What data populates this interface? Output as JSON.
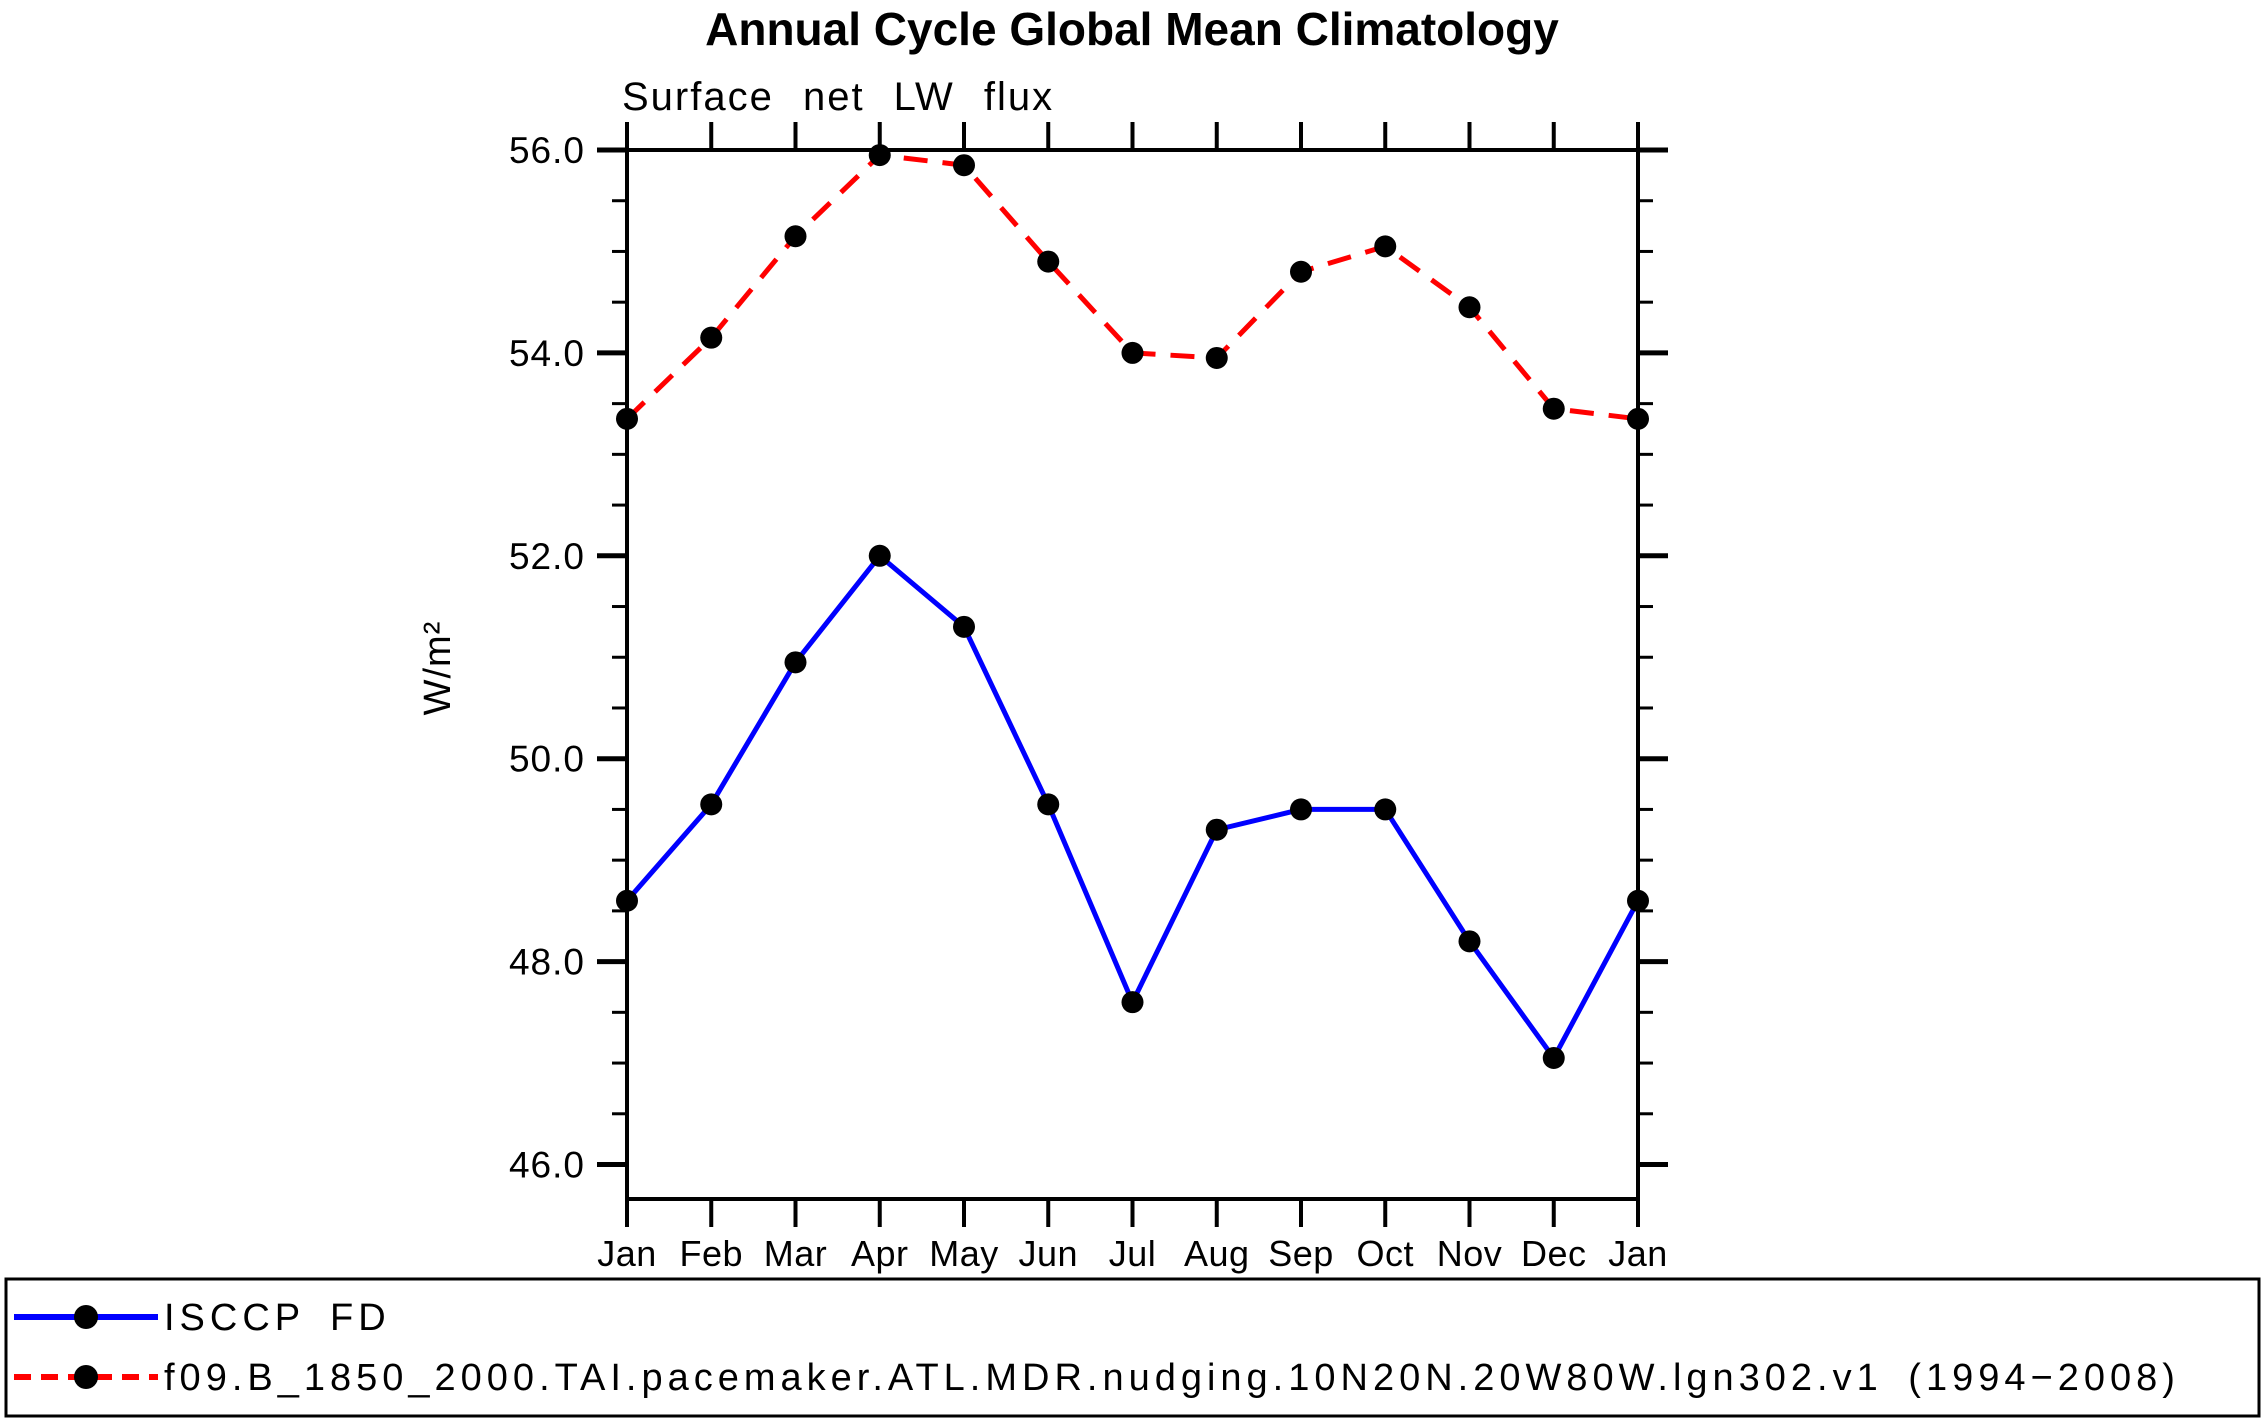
{
  "chart_data": {
    "type": "line",
    "title": "Annual Cycle Global Mean Climatology",
    "subtitle": "Surface net LW flux",
    "ylabel": "W/m²",
    "categories": [
      "Jan",
      "Feb",
      "Mar",
      "Apr",
      "May",
      "Jun",
      "Jul",
      "Aug",
      "Sep",
      "Oct",
      "Nov",
      "Dec",
      "Jan"
    ],
    "ylim": [
      45.66,
      56.0
    ],
    "yticks_major": [
      46,
      48,
      50,
      52,
      54,
      56
    ],
    "ytick_labels": [
      "46.0",
      "48.0",
      "50.0",
      "52.0",
      "54.0",
      "56.0"
    ],
    "ytick_minor_step": 0.5,
    "grid": false,
    "legend_position": "bottom",
    "axis_color": "#000000",
    "marker_color": "#000000",
    "series": [
      {
        "name": "ISCCP FD",
        "color": "#0000ff",
        "line_style": "solid",
        "marker": "circle",
        "values": [
          48.6,
          49.55,
          50.95,
          52.0,
          51.3,
          49.55,
          47.6,
          49.3,
          49.5,
          49.5,
          48.2,
          47.05,
          48.6
        ]
      },
      {
        "name": "f09.B_1850_2000.TAI.pacemaker.ATL.MDR.nudging.10N20N.20W80W.lgn302.v1 (1994−2008)",
        "color": "#ff0000",
        "line_style": "dashed",
        "marker": "circle",
        "values": [
          53.35,
          54.15,
          55.15,
          55.95,
          55.85,
          54.9,
          54.0,
          53.95,
          54.8,
          55.05,
          54.45,
          53.45,
          53.35
        ]
      }
    ]
  }
}
